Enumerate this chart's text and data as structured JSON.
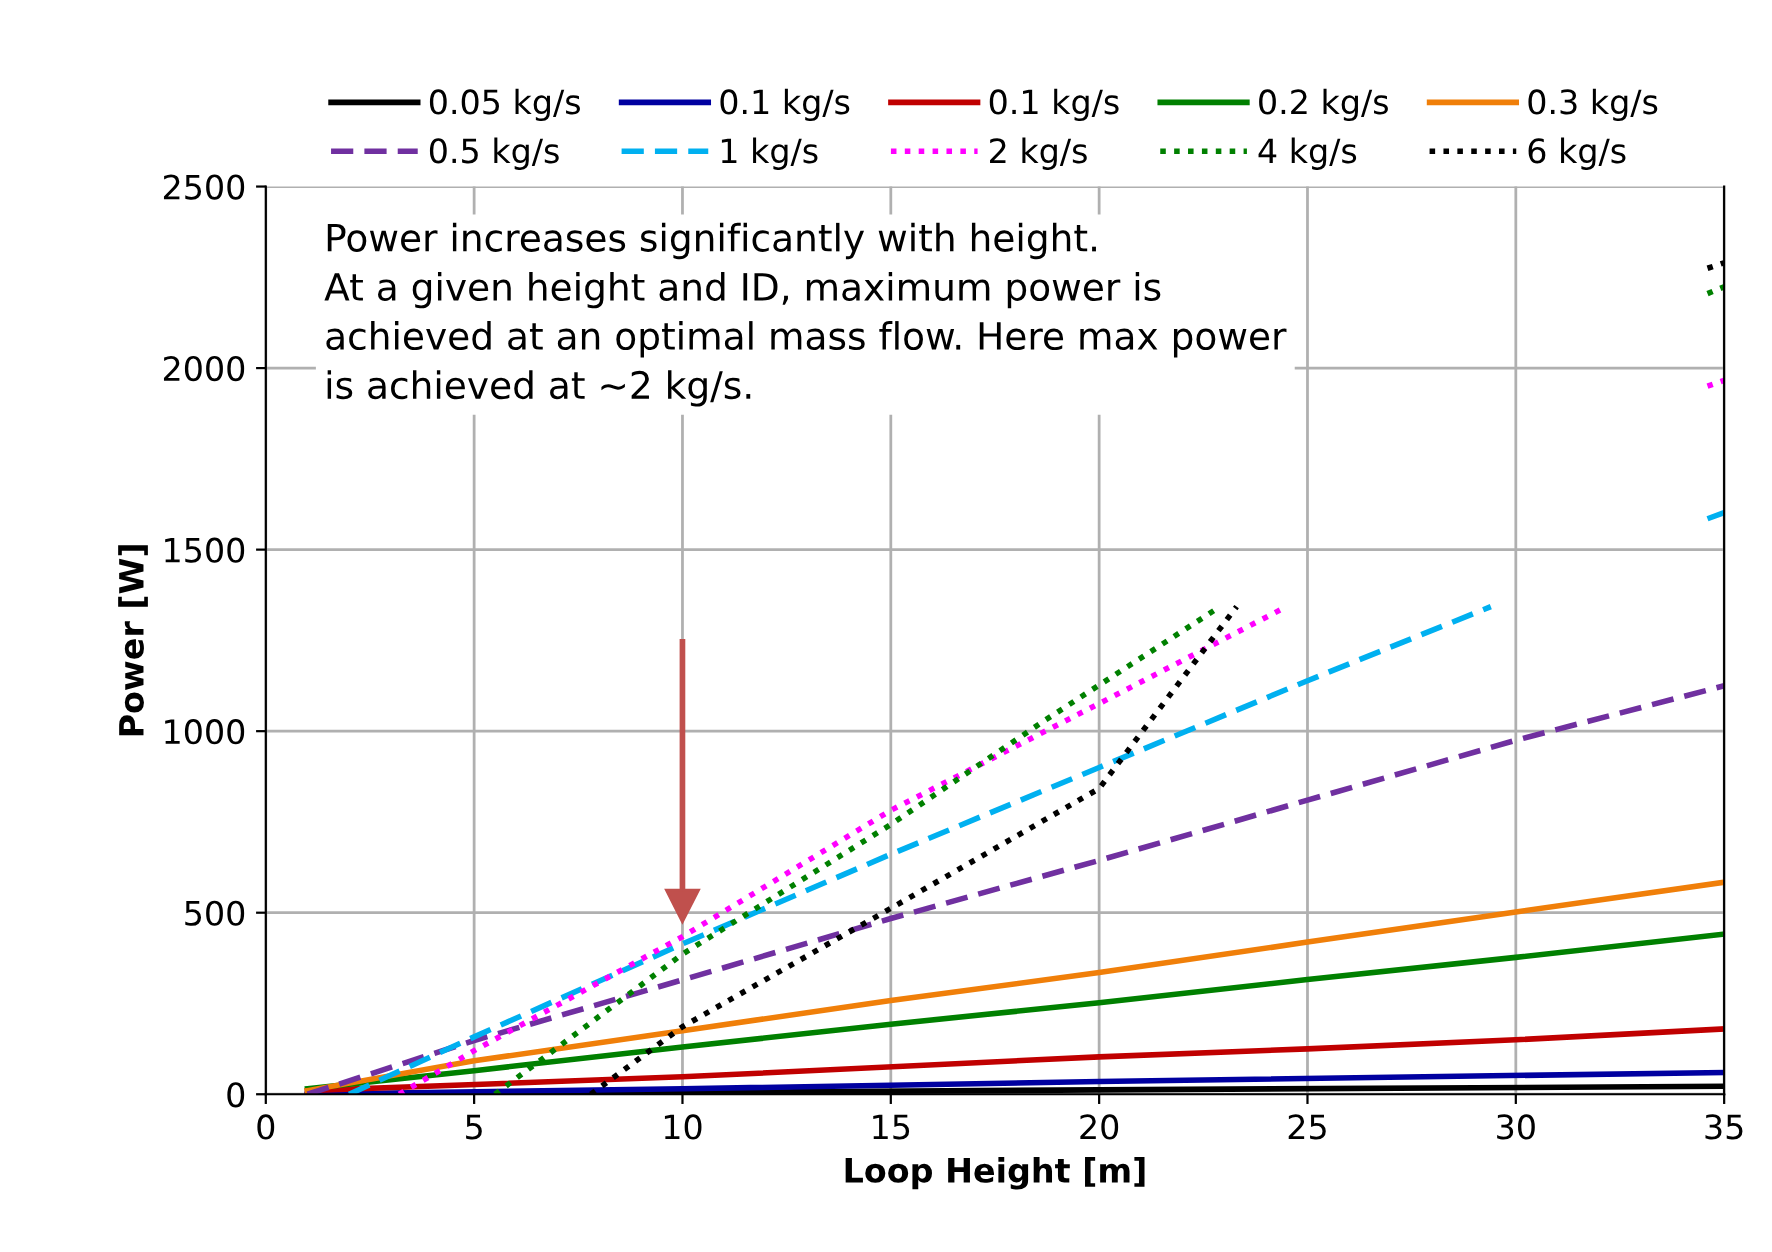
{
  "chart_data": {
    "type": "line",
    "xlabel": "Loop Height [m]",
    "ylabel": "Power [W]",
    "xlim": [
      0,
      35
    ],
    "ylim": [
      0,
      2500
    ],
    "xticks": [
      0,
      5,
      10,
      15,
      20,
      25,
      30,
      35
    ],
    "yticks": [
      0,
      500,
      1000,
      1500,
      2000,
      2500
    ],
    "grid": true,
    "legend": "top",
    "marker": "none",
    "annotations": [
      "Power increases significantly with height.\nAt a given height and ID, maximum power is\nachieved at an optimal mass flow. Here max power\nis achieved at ~2 kg/s."
    ],
    "series": [
      {
        "name": "0.05 kg/s",
        "color": "#000000",
        "line_style": "solid",
        "x": [
          1,
          10,
          20,
          35
        ],
        "values": [
          0,
          5,
          12,
          22
        ]
      },
      {
        "name": "0.1 kg/s",
        "color": "#0000a0",
        "line_style": "solid",
        "x": [
          1,
          10,
          20,
          35
        ],
        "values": [
          0,
          15,
          35,
          60
        ]
      },
      {
        "name": "0.1 kg/s",
        "color": "#c00000",
        "line_style": "solid",
        "x": [
          1,
          10,
          20,
          25,
          30,
          35
        ],
        "values": [
          10,
          48,
          103,
          125,
          150,
          180
        ]
      },
      {
        "name": "0.2 kg/s",
        "color": "#008000",
        "line_style": "solid",
        "x": [
          1,
          5,
          10,
          15,
          20,
          25,
          30,
          35
        ],
        "values": [
          15,
          65,
          130,
          193,
          252,
          316,
          377,
          441
        ]
      },
      {
        "name": "0.3 kg/s",
        "color": "#f07f09",
        "line_style": "solid",
        "x": [
          1,
          5,
          10,
          15,
          20,
          25,
          30,
          35
        ],
        "values": [
          10,
          92,
          175,
          258,
          335,
          419,
          502,
          584
        ]
      },
      {
        "name": "0.5 kg/s",
        "color": "#7030a0",
        "line_style": "dashed",
        "x": [
          1,
          5,
          10,
          15,
          20,
          25,
          30,
          35
        ],
        "values": [
          0,
          148,
          315,
          484,
          644,
          810,
          975,
          1125
        ]
      },
      {
        "name": "1 kg/s",
        "color": "#00b0f0",
        "line_style": "dashed",
        "x": [
          2,
          5,
          10,
          15,
          20,
          25,
          29.4,
          30,
          34.6,
          35
        ],
        "values": [
          0,
          158,
          414,
          661,
          900,
          1139,
          1343,
          null,
          1585,
          1602
        ]
      },
      {
        "name": "2 kg/s",
        "color": "#ff00ff",
        "line_style": "dotted",
        "x": [
          3.2,
          5,
          10,
          15,
          20,
          24.5,
          25,
          34.6,
          35
        ],
        "values": [
          0,
          120,
          434,
          782,
          1076,
          1343,
          null,
          1950,
          1966
        ]
      },
      {
        "name": "4 kg/s",
        "color": "#008000",
        "line_style": "dotted",
        "x": [
          5.5,
          10,
          15,
          18.7,
          22.9,
          23,
          34.6,
          35
        ],
        "values": [
          0,
          386,
          743,
          1030,
          1343,
          null,
          2205,
          2224
        ]
      },
      {
        "name": "6 kg/s",
        "color": "#000000",
        "line_style": "dotted",
        "x": [
          7.8,
          10,
          15,
          20,
          23.3,
          23.5,
          34.6,
          35
        ],
        "values": [
          0,
          186,
          512,
          842,
          1343,
          null,
          2275,
          2290
        ]
      }
    ]
  }
}
